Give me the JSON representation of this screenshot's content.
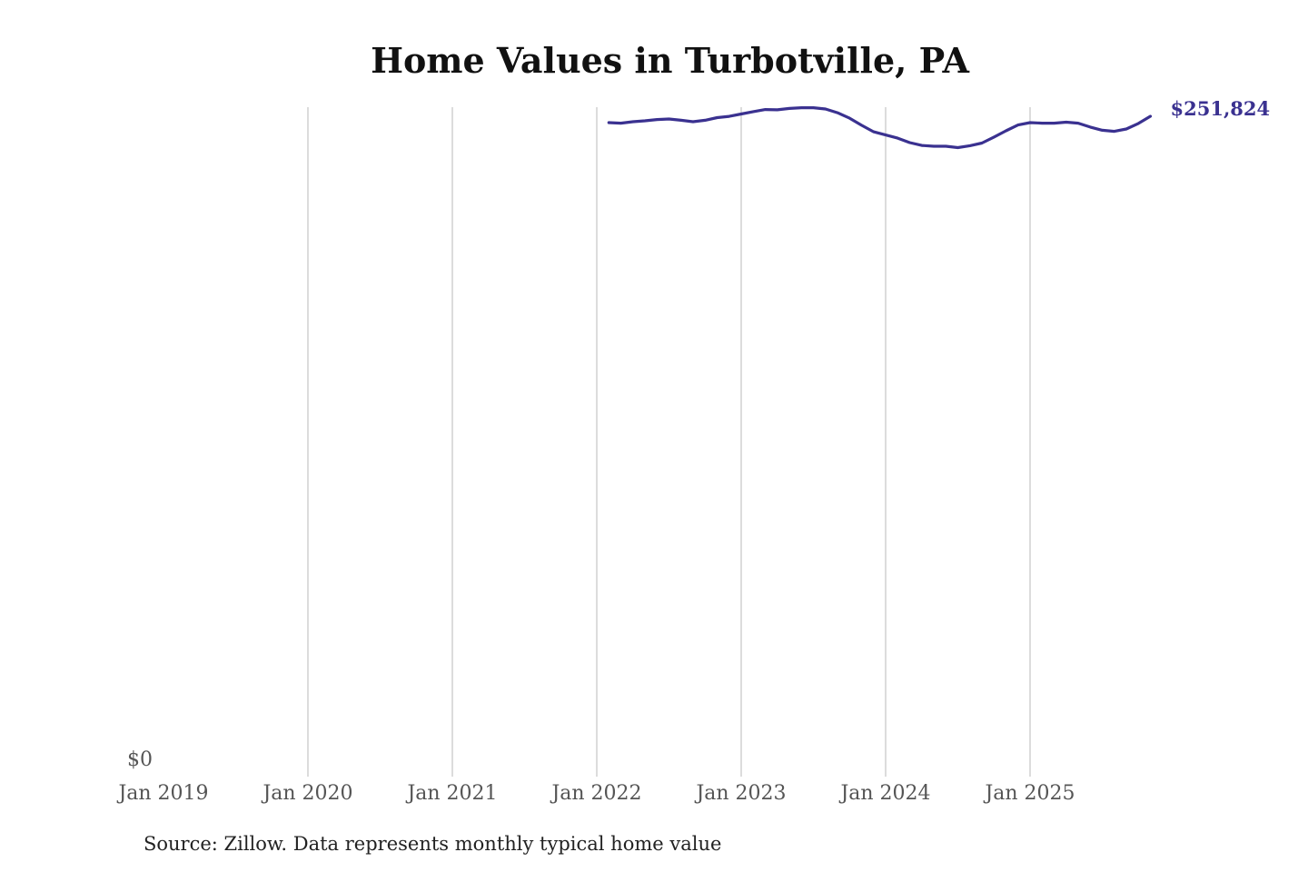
{
  "chart_data": {
    "type": "line",
    "title": "Home Values in Turbotville, PA",
    "source": "Source: Zillow. Data represents monthly typical home value",
    "xlabel": "",
    "ylabel": "",
    "x_ticks": [
      "Jan 2019",
      "Jan 2020",
      "Jan 2021",
      "Jan 2022",
      "Jan 2023",
      "Jan 2024",
      "Jan 2025"
    ],
    "y_ticks": [
      "$0"
    ],
    "ylim": [
      0,
      255300
    ],
    "grid": "vertical",
    "color": "#3a3190",
    "end_label": "$251,824",
    "series": [
      {
        "name": "Typical home value",
        "start": "2022-02",
        "frequency": "monthly",
        "values": [
          249400,
          249200,
          249750,
          250100,
          250600,
          250800,
          250300,
          249750,
          250300,
          251300,
          251800,
          252700,
          253600,
          254400,
          254300,
          254800,
          255100,
          255100,
          254600,
          253200,
          251100,
          248400,
          245900,
          244700,
          243500,
          241800,
          240700,
          240400,
          240400,
          239900,
          240600,
          241600,
          243900,
          246300,
          248500,
          249400,
          249200,
          249200,
          249600,
          249200,
          247700,
          246500,
          246100,
          247000,
          249100,
          251824
        ]
      }
    ]
  }
}
